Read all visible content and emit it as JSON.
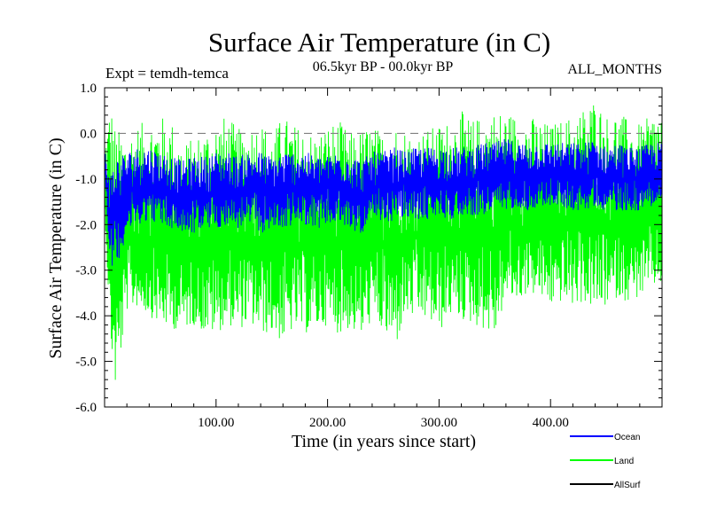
{
  "chart_data": {
    "type": "line",
    "title": "Surface Air Temperature (in C)",
    "subtitle_left": "Expt = temdh-temca",
    "subtitle_center": "06.5kyr BP - 00.0kyr BP",
    "subtitle_right": "ALL_MONTHS",
    "xlabel": "Time (in years since start)",
    "ylabel": "Surface Air Temperature (in C)",
    "xlim": [
      0,
      500
    ],
    "ylim": [
      -6.0,
      1.0
    ],
    "x_ticks": [
      "100.00",
      "200.00",
      "300.00",
      "400.00"
    ],
    "x_tick_values": [
      100,
      200,
      300,
      400
    ],
    "y_ticks": [
      "1.0",
      "0.0",
      "-1.0",
      "-2.0",
      "-3.0",
      "-4.0",
      "-5.0",
      "-6.0"
    ],
    "y_tick_values": [
      1.0,
      0.0,
      -1.0,
      -2.0,
      -3.0,
      -4.0,
      -5.0,
      -6.0
    ],
    "reference_line": 0.0,
    "series": [
      {
        "name": "Land",
        "color": "#00ff00",
        "x": [
          0,
          5,
          10,
          20,
          30,
          40,
          50,
          60,
          70,
          80,
          90,
          100,
          110,
          120,
          130,
          140,
          150,
          160,
          170,
          180,
          190,
          200,
          210,
          220,
          230,
          240,
          250,
          260,
          270,
          280,
          290,
          300,
          310,
          320,
          330,
          340,
          350,
          360,
          370,
          380,
          390,
          400,
          410,
          420,
          430,
          440,
          450,
          460,
          470,
          480,
          490,
          500
        ],
        "min": [
          -1.5,
          -4.5,
          -5.7,
          -3.9,
          -3.8,
          -4.0,
          -4.2,
          -4.3,
          -4.3,
          -4.2,
          -4.4,
          -4.4,
          -4.2,
          -4.3,
          -4.2,
          -4.4,
          -4.4,
          -4.6,
          -4.3,
          -4.4,
          -4.3,
          -4.2,
          -4.4,
          -4.3,
          -4.5,
          -4.1,
          -4.4,
          -4.8,
          -4.0,
          -4.1,
          -4.1,
          -4.4,
          -4.0,
          -4.1,
          -4.2,
          -4.3,
          -4.5,
          -3.6,
          -3.7,
          -3.5,
          -3.6,
          -3.8,
          -3.7,
          -3.8,
          -3.7,
          -3.9,
          -3.8,
          -3.6,
          -3.7,
          -3.6,
          -3.4,
          -3.3
        ],
        "max": [
          -0.2,
          0.8,
          0.1,
          0.0,
          0.2,
          0.3,
          0.4,
          0.3,
          -0.2,
          -0.1,
          0.1,
          0.3,
          0.4,
          0.1,
          0.2,
          0.3,
          0.0,
          0.4,
          0.2,
          0.1,
          0.0,
          0.2,
          0.3,
          0.0,
          0.1,
          0.2,
          0.0,
          0.2,
          0.1,
          0.0,
          0.1,
          0.2,
          0.3,
          0.5,
          0.3,
          0.4,
          0.5,
          0.5,
          0.4,
          0.4,
          0.3,
          0.2,
          0.3,
          0.4,
          0.6,
          0.8,
          0.4,
          0.5,
          0.3,
          0.2,
          0.4,
          0.6
        ],
        "mean": [
          -1.5,
          -2.8,
          -3.0,
          -2.4,
          -2.4,
          -2.4,
          -2.5,
          -2.6,
          -2.7,
          -2.6,
          -2.5,
          -2.5,
          -2.5,
          -2.5,
          -2.4,
          -2.5,
          -2.6,
          -2.5,
          -2.5,
          -2.5,
          -2.5,
          -2.5,
          -2.4,
          -2.5,
          -2.6,
          -2.4,
          -2.4,
          -2.3,
          -2.4,
          -2.3,
          -2.3,
          -2.3,
          -2.3,
          -2.3,
          -2.3,
          -2.2,
          -2.2,
          -2.1,
          -2.1,
          -2.1,
          -2.1,
          -2.1,
          -2.0,
          -2.1,
          -2.1,
          -2.0,
          -2.1,
          -2.1,
          -2.1,
          -2.1,
          -2.0,
          -2.0
        ]
      },
      {
        "name": "Ocean",
        "color": "#0000ff",
        "x": [
          0,
          5,
          10,
          20,
          30,
          40,
          50,
          60,
          70,
          80,
          90,
          100,
          110,
          120,
          130,
          140,
          150,
          160,
          170,
          180,
          190,
          200,
          210,
          220,
          230,
          240,
          250,
          260,
          270,
          280,
          290,
          300,
          310,
          320,
          330,
          340,
          350,
          360,
          370,
          380,
          390,
          400,
          410,
          420,
          430,
          440,
          450,
          460,
          470,
          480,
          490,
          500
        ],
        "min": [
          -0.8,
          -2.9,
          -3.0,
          -2.2,
          -2.0,
          -1.9,
          -2.0,
          -2.1,
          -2.2,
          -2.2,
          -2.1,
          -2.1,
          -2.0,
          -2.1,
          -2.0,
          -2.2,
          -2.1,
          -2.1,
          -2.0,
          -2.0,
          -2.1,
          -2.0,
          -2.0,
          -2.1,
          -2.2,
          -2.0,
          -2.0,
          -1.9,
          -1.9,
          -1.9,
          -1.9,
          -1.8,
          -1.9,
          -1.8,
          -1.8,
          -1.8,
          -1.7,
          -1.7,
          -1.6,
          -1.7,
          -1.6,
          -1.6,
          -1.6,
          -1.7,
          -1.7,
          -1.6,
          -1.7,
          -1.7,
          -1.7,
          -1.7,
          -1.6,
          -1.5
        ],
        "max": [
          -0.3,
          -0.9,
          -0.5,
          -0.4,
          -0.3,
          -0.3,
          -0.4,
          -0.5,
          -0.6,
          -0.5,
          -0.5,
          -0.4,
          -0.4,
          -0.5,
          -0.4,
          -0.4,
          -0.5,
          -0.4,
          -0.4,
          -0.4,
          -0.5,
          -0.5,
          -0.4,
          -0.4,
          -0.6,
          -0.4,
          -0.4,
          -0.3,
          -0.4,
          -0.3,
          -0.3,
          -0.3,
          -0.3,
          -0.3,
          -0.3,
          -0.2,
          -0.2,
          -0.1,
          -0.2,
          -0.2,
          -0.2,
          -0.2,
          -0.2,
          -0.2,
          -0.2,
          -0.1,
          -0.3,
          -0.2,
          -0.3,
          -0.3,
          -0.2,
          -0.2
        ],
        "mean": [
          -0.6,
          -1.9,
          -1.8,
          -1.3,
          -1.2,
          -1.1,
          -1.2,
          -1.3,
          -1.4,
          -1.3,
          -1.3,
          -1.3,
          -1.2,
          -1.3,
          -1.2,
          -1.3,
          -1.3,
          -1.3,
          -1.2,
          -1.2,
          -1.3,
          -1.2,
          -1.2,
          -1.3,
          -1.4,
          -1.2,
          -1.2,
          -1.1,
          -1.1,
          -1.1,
          -1.1,
          -1.1,
          -1.1,
          -1.1,
          -1.0,
          -1.0,
          -1.0,
          -0.9,
          -0.9,
          -1.0,
          -0.9,
          -0.9,
          -0.9,
          -1.0,
          -1.0,
          -0.9,
          -1.0,
          -1.0,
          -1.0,
          -1.0,
          -0.9,
          -0.9
        ]
      },
      {
        "name": "AllSurf",
        "color": "#000000",
        "x": [],
        "mean": []
      }
    ],
    "legend": [
      {
        "label": "Ocean",
        "color": "#0000ff"
      },
      {
        "label": "Land",
        "color": "#00ff00"
      },
      {
        "label": "AllSurf",
        "color": "#000000"
      }
    ]
  }
}
